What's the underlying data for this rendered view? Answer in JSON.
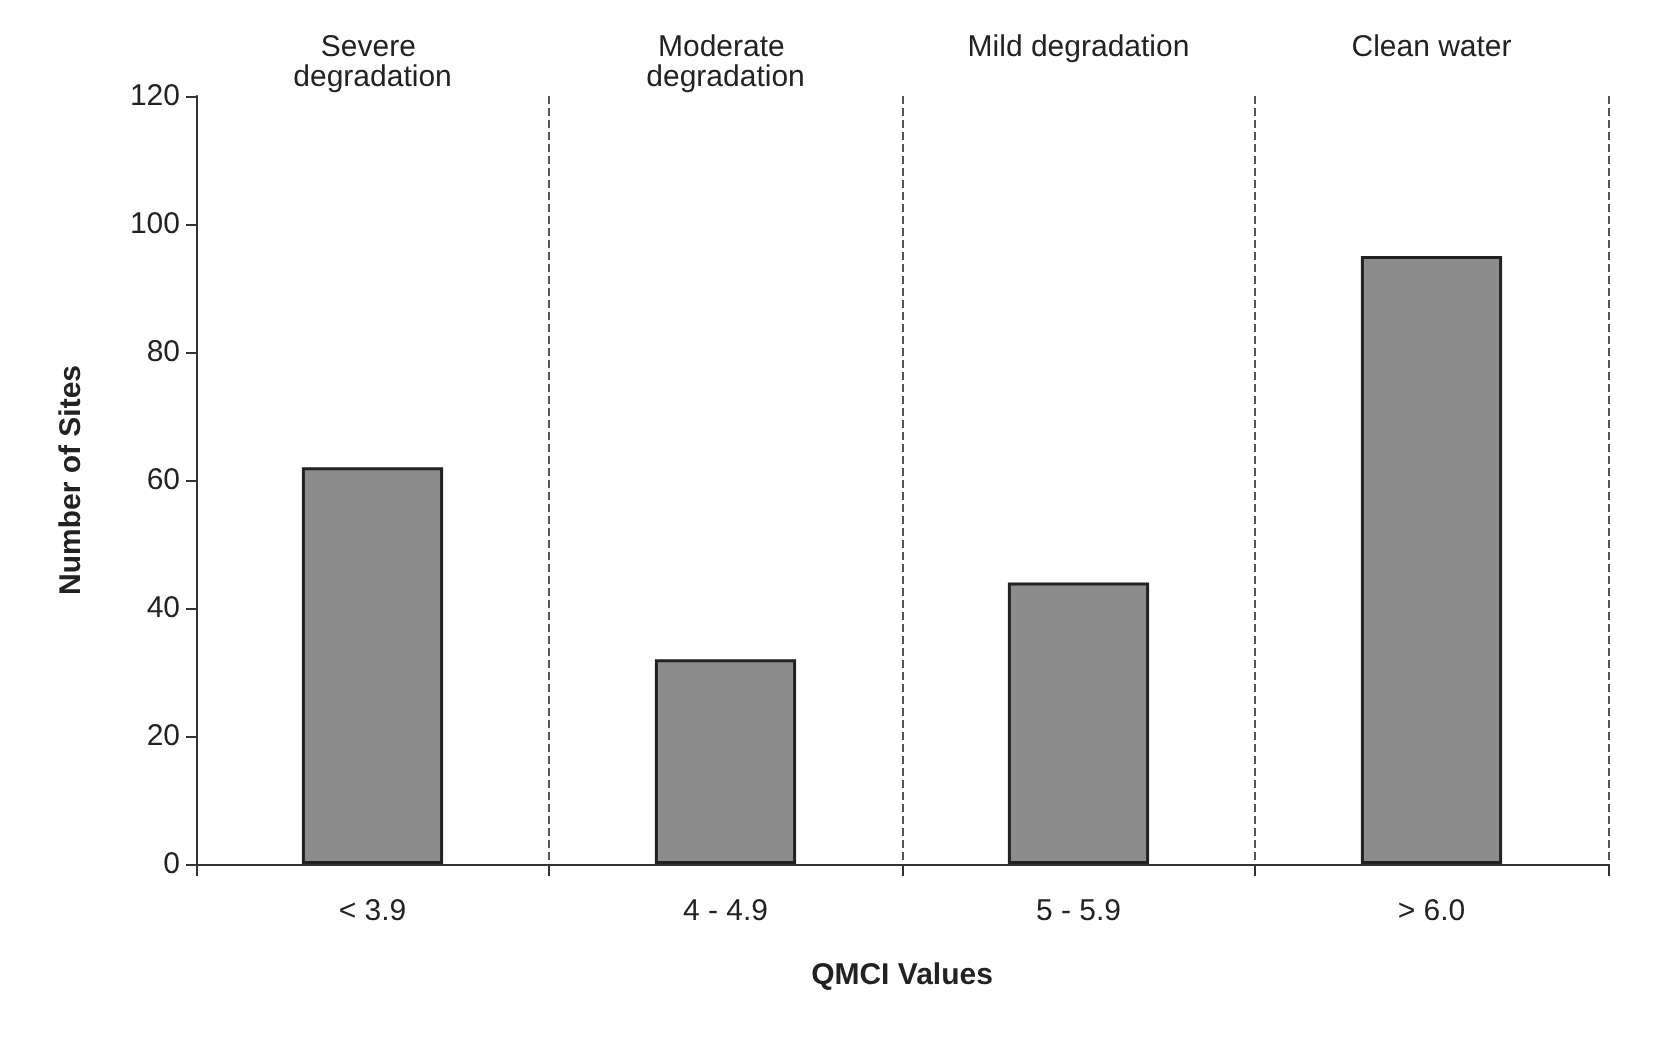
{
  "chart_data": {
    "type": "bar",
    "xlabel": "QMCI Values",
    "ylabel": "Number of Sites",
    "categories": [
      "< 3.9",
      "4 - 4.9",
      "5 - 5.9",
      "> 6.0"
    ],
    "values": [
      62,
      32,
      44,
      95
    ],
    "color": "#8c8c8c",
    "ylim": [
      0,
      120
    ],
    "yticks": [
      0,
      20,
      40,
      60,
      80,
      100,
      120
    ],
    "grid": "x",
    "annotations": [
      "Severe degradation",
      "Moderate degradation",
      "Mild degradation",
      "Clean water"
    ]
  }
}
